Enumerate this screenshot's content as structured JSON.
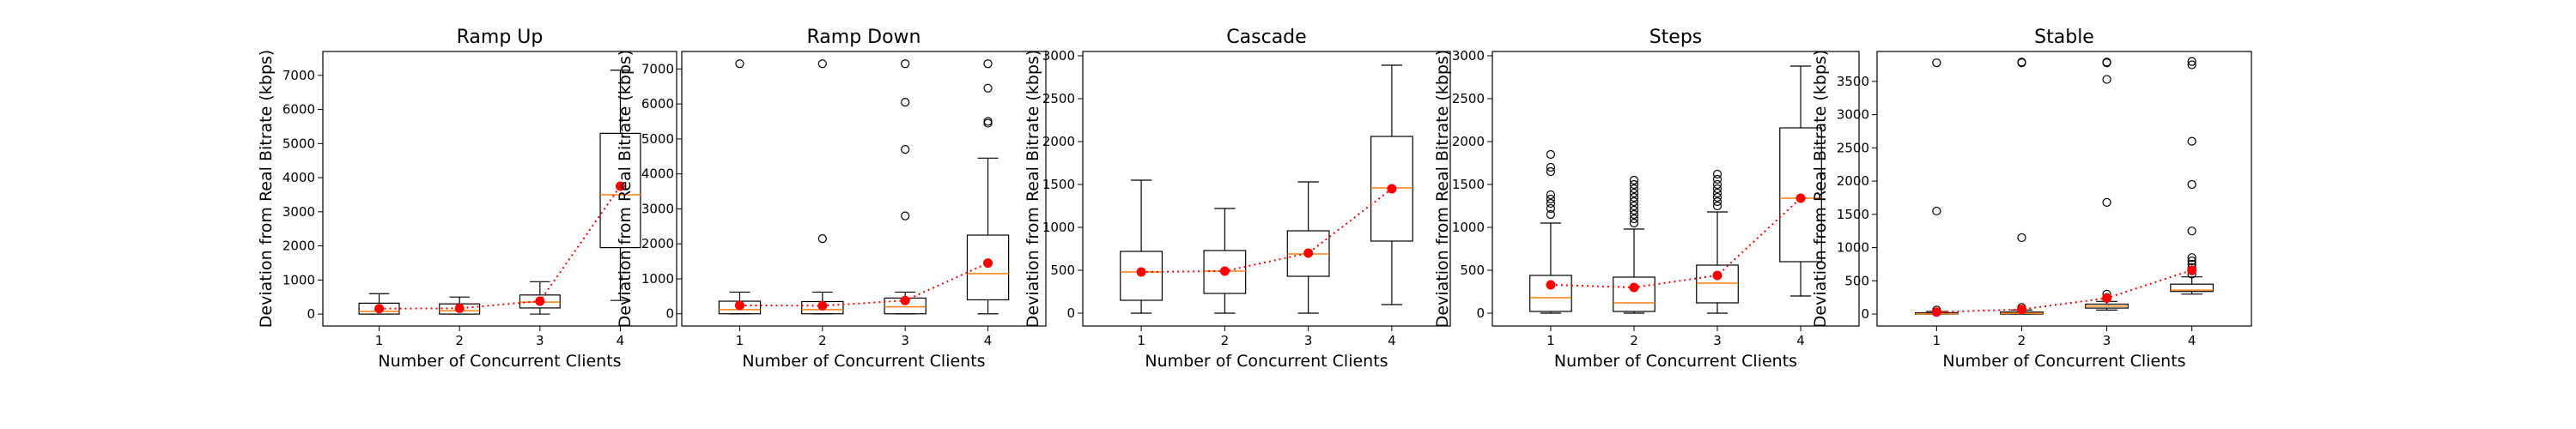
{
  "figure": {
    "colors": {
      "box": "#000000",
      "median": "#ff7f0e",
      "mean": "#ff0000",
      "trend": "#ff0000"
    }
  },
  "chart_data": [
    {
      "type": "box",
      "title": "Ramp Up",
      "xlabel": "Number of Concurrent Clients",
      "ylabel": "Deviation from Real Bitrate (kbps)",
      "categories": [
        "1",
        "2",
        "3",
        "4"
      ],
      "ylim": [
        -350,
        7700
      ],
      "yticks": [
        0,
        1000,
        2000,
        3000,
        4000,
        5000,
        6000,
        7000
      ],
      "boxes": [
        {
          "whislo": 0,
          "q1": 0,
          "med": 80,
          "q3": 320,
          "whishi": 600,
          "mean": 160,
          "fliers": []
        },
        {
          "whislo": 0,
          "q1": 0,
          "med": 100,
          "q3": 300,
          "whishi": 500,
          "mean": 170,
          "fliers": []
        },
        {
          "whislo": 0,
          "q1": 180,
          "med": 350,
          "q3": 560,
          "whishi": 950,
          "mean": 380,
          "fliers": []
        },
        {
          "whislo": 400,
          "q1": 1950,
          "med": 3500,
          "q3": 5300,
          "whishi": 7150,
          "mean": 3750,
          "fliers": []
        }
      ]
    },
    {
      "type": "box",
      "title": "Ramp Down",
      "xlabel": "Number of Concurrent Clients",
      "ylabel": "Deviation from Real Bitrate (kbps)",
      "categories": [
        "1",
        "2",
        "3",
        "4"
      ],
      "ylim": [
        -350,
        7500
      ],
      "yticks": [
        0,
        1000,
        2000,
        3000,
        4000,
        5000,
        6000,
        7000
      ],
      "boxes": [
        {
          "whislo": 0,
          "q1": 0,
          "med": 120,
          "q3": 360,
          "whishi": 620,
          "mean": 240,
          "fliers": [
            7150
          ]
        },
        {
          "whislo": 0,
          "q1": 0,
          "med": 120,
          "q3": 350,
          "whishi": 620,
          "mean": 230,
          "fliers": [
            2150,
            7150
          ]
        },
        {
          "whislo": 0,
          "q1": 0,
          "med": 200,
          "q3": 450,
          "whishi": 620,
          "mean": 380,
          "fliers": [
            2800,
            4700,
            6050,
            7150
          ]
        },
        {
          "whislo": 0,
          "q1": 400,
          "med": 1150,
          "q3": 2250,
          "whishi": 4450,
          "mean": 1450,
          "fliers": [
            5450,
            5500,
            6450,
            7150
          ]
        }
      ]
    },
    {
      "type": "box",
      "title": "Cascade",
      "xlabel": "Number of Concurrent Clients",
      "ylabel": "Deviation from Real Bitrate (kbps)",
      "categories": [
        "1",
        "2",
        "3",
        "4"
      ],
      "ylim": [
        -150,
        3050
      ],
      "yticks": [
        0,
        500,
        1000,
        1500,
        2000,
        2500,
        3000
      ],
      "boxes": [
        {
          "whislo": 0,
          "q1": 150,
          "med": 480,
          "q3": 720,
          "whishi": 1550,
          "mean": 480,
          "fliers": []
        },
        {
          "whislo": 0,
          "q1": 230,
          "med": 490,
          "q3": 730,
          "whishi": 1220,
          "mean": 490,
          "fliers": []
        },
        {
          "whislo": 0,
          "q1": 430,
          "med": 690,
          "q3": 960,
          "whishi": 1530,
          "mean": 700,
          "fliers": []
        },
        {
          "whislo": 100,
          "q1": 840,
          "med": 1460,
          "q3": 2060,
          "whishi": 2890,
          "mean": 1450,
          "fliers": []
        }
      ]
    },
    {
      "type": "box",
      "title": "Steps",
      "xlabel": "Number of Concurrent Clients",
      "ylabel": "Deviation from Real Bitrate (kbps)",
      "categories": [
        "1",
        "2",
        "3",
        "4"
      ],
      "ylim": [
        -150,
        3050
      ],
      "yticks": [
        0,
        500,
        1000,
        1500,
        2000,
        2500,
        3000
      ],
      "boxes": [
        {
          "whislo": 0,
          "q1": 20,
          "med": 180,
          "q3": 440,
          "whishi": 1050,
          "mean": 330,
          "fliers": [
            1150,
            1220,
            1280,
            1330,
            1380,
            1650,
            1700,
            1850
          ]
        },
        {
          "whislo": 0,
          "q1": 20,
          "med": 120,
          "q3": 420,
          "whishi": 980,
          "mean": 300,
          "fliers": [
            1050,
            1100,
            1150,
            1200,
            1250,
            1300,
            1350,
            1400,
            1450,
            1500,
            1550
          ]
        },
        {
          "whislo": 0,
          "q1": 120,
          "med": 350,
          "q3": 560,
          "whishi": 1180,
          "mean": 440,
          "fliers": [
            1250,
            1300,
            1350,
            1400,
            1450,
            1500,
            1560,
            1620
          ]
        },
        {
          "whislo": 200,
          "q1": 600,
          "med": 1340,
          "q3": 2160,
          "whishi": 2880,
          "mean": 1340,
          "fliers": []
        }
      ]
    },
    {
      "type": "box",
      "title": "Stable",
      "xlabel": "Number of Concurrent Clients",
      "ylabel": "Deviation from Real Bitrate (kbps)",
      "categories": [
        "1",
        "2",
        "3",
        "4"
      ],
      "ylim": [
        -180,
        3950
      ],
      "yticks": [
        0,
        500,
        1000,
        1500,
        2000,
        2500,
        3000,
        3500
      ],
      "boxes": [
        {
          "whislo": 0,
          "q1": 0,
          "med": 5,
          "q3": 20,
          "whishi": 40,
          "mean": 30,
          "fliers": [
            60,
            1550,
            3780
          ]
        },
        {
          "whislo": 0,
          "q1": 0,
          "med": 10,
          "q3": 30,
          "whishi": 60,
          "mean": 70,
          "fliers": [
            100,
            1150,
            3780,
            3790
          ]
        },
        {
          "whislo": 60,
          "q1": 90,
          "med": 120,
          "q3": 150,
          "whishi": 190,
          "mean": 240,
          "fliers": [
            250,
            300,
            1680,
            3530,
            3780,
            3790
          ]
        },
        {
          "whislo": 300,
          "q1": 340,
          "med": 360,
          "q3": 450,
          "whishi": 560,
          "mean": 660,
          "fliers": [
            600,
            650,
            700,
            750,
            800,
            850,
            1250,
            1950,
            2600,
            3750,
            3800
          ]
        }
      ]
    }
  ]
}
